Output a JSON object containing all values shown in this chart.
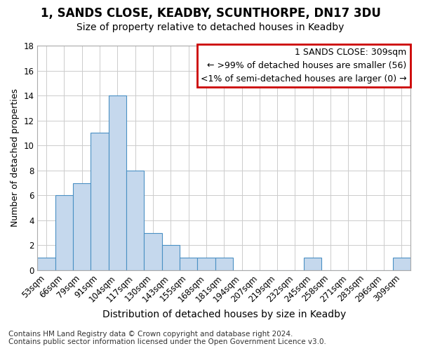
{
  "title": "1, SANDS CLOSE, KEADBY, SCUNTHORPE, DN17 3DU",
  "subtitle": "Size of property relative to detached houses in Keadby",
  "xlabel": "Distribution of detached houses by size in Keadby",
  "ylabel": "Number of detached properties",
  "categories": [
    "53sqm",
    "66sqm",
    "79sqm",
    "91sqm",
    "104sqm",
    "117sqm",
    "130sqm",
    "143sqm",
    "155sqm",
    "168sqm",
    "181sqm",
    "194sqm",
    "207sqm",
    "219sqm",
    "232sqm",
    "245sqm",
    "258sqm",
    "271sqm",
    "283sqm",
    "296sqm",
    "309sqm"
  ],
  "values": [
    1,
    6,
    7,
    11,
    14,
    8,
    3,
    2,
    1,
    1,
    1,
    0,
    0,
    0,
    0,
    1,
    0,
    0,
    0,
    0,
    1
  ],
  "bar_color": "#c5d8ed",
  "bar_edge_color": "#4a90c4",
  "annotation_box_text": "1 SANDS CLOSE: 309sqm\n← >99% of detached houses are smaller (56)\n<1% of semi-detached houses are larger (0) →",
  "annotation_box_edge_color": "#cc0000",
  "annotation_box_facecolor": "#ffffff",
  "ylim": [
    0,
    18
  ],
  "yticks": [
    0,
    2,
    4,
    6,
    8,
    10,
    12,
    14,
    16,
    18
  ],
  "grid_color": "#cccccc",
  "background_color": "#ffffff",
  "footer_text": "Contains HM Land Registry data © Crown copyright and database right 2024.\nContains public sector information licensed under the Open Government Licence v3.0.",
  "title_fontsize": 12,
  "subtitle_fontsize": 10,
  "xlabel_fontsize": 10,
  "ylabel_fontsize": 9,
  "tick_fontsize": 8.5,
  "annotation_fontsize": 9,
  "footer_fontsize": 7.5
}
